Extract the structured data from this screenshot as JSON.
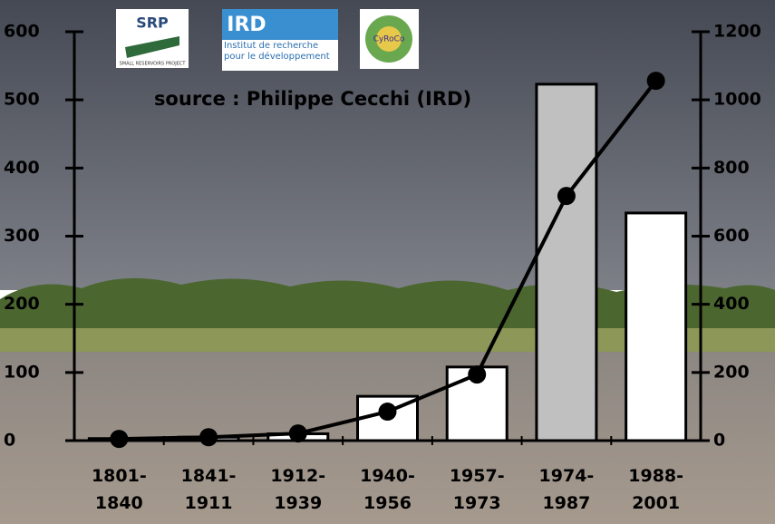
{
  "chart_data": {
    "type": "bar",
    "source": "source : Philippe Cecchi (IRD)",
    "logos": [
      {
        "title": "SRP",
        "subtitle": "SMALL RESERVOIRS PROJECT"
      },
      {
        "title": "IRD",
        "subtitle": "Institut de recherche\npour le développement"
      },
      {
        "title": "CyRoCo"
      }
    ],
    "categories": [
      "1801-\n1840",
      "1841-\n1911",
      "1912-\n1939",
      "1940-\n1956",
      "1957-\n1973",
      "1974-\n1987",
      "1988-\n2001"
    ],
    "series": [
      {
        "type": "bar",
        "values": [
          3,
          5,
          10,
          65,
          108,
          523,
          334
        ],
        "colors": [
          "#ffffff",
          "#ffffff",
          "#ffffff",
          "#ffffff",
          "#ffffff",
          "#c0c0c0",
          "#ffffff"
        ]
      },
      {
        "type": "line",
        "axis": "y2",
        "color": "#000000",
        "values": [
          5,
          10,
          21,
          85,
          194,
          718,
          1056
        ]
      }
    ],
    "ylim": [
      0,
      600
    ],
    "yticks": [
      0,
      100,
      200,
      300,
      400,
      500,
      600
    ],
    "y2lim": [
      0,
      1200
    ],
    "y2ticks": [
      0,
      200,
      400,
      600,
      800,
      1000,
      1200
    ]
  }
}
